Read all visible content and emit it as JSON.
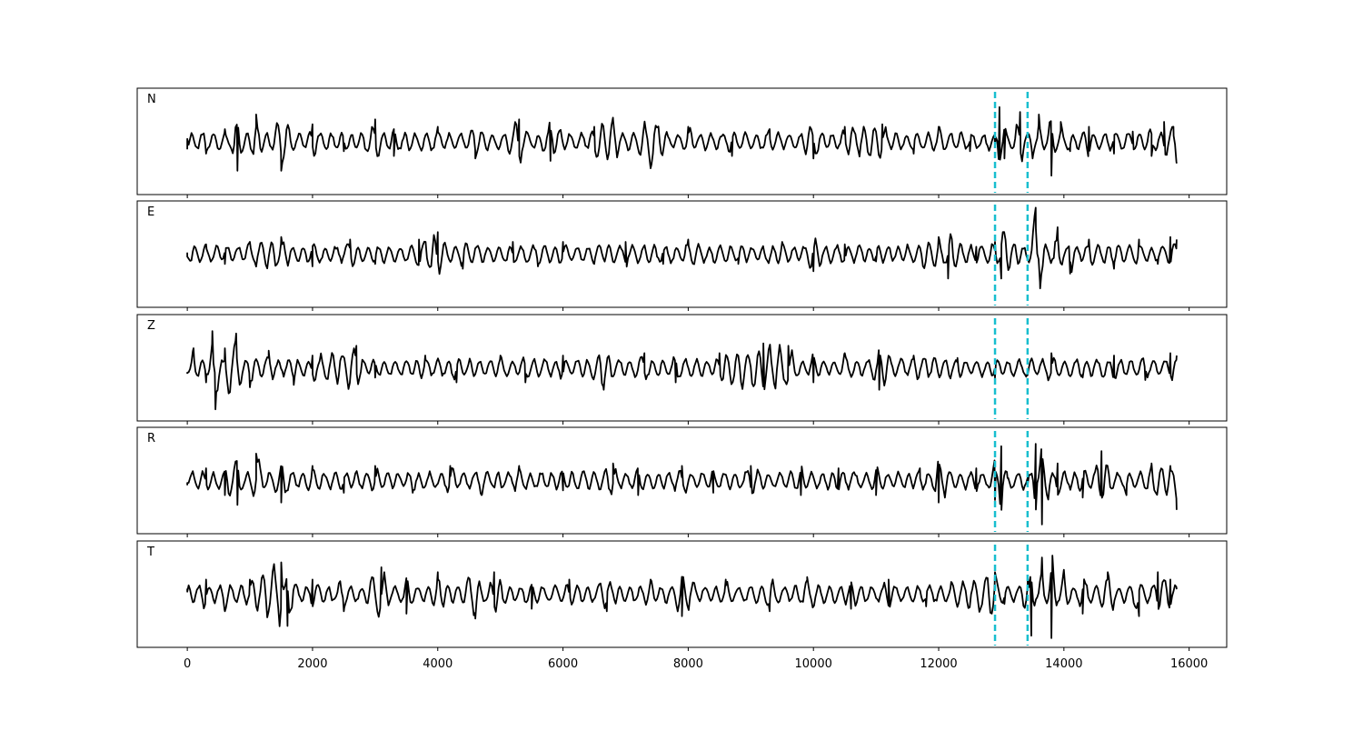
{
  "chart_data": {
    "type": "line",
    "x_range": [
      0,
      15800
    ],
    "xlim": [
      -800,
      16600
    ],
    "x_ticks": [
      {
        "value": 0,
        "label": "0"
      },
      {
        "value": 2000,
        "label": "2000"
      },
      {
        "value": 4000,
        "label": "4000"
      },
      {
        "value": 6000,
        "label": "6000"
      },
      {
        "value": 8000,
        "label": "8000"
      },
      {
        "value": 10000,
        "label": "10000"
      },
      {
        "value": 12000,
        "label": "12000"
      },
      {
        "value": 14000,
        "label": "14000"
      },
      {
        "value": 16000,
        "label": "16000"
      }
    ],
    "markers": [
      12900,
      13420
    ],
    "colors": {
      "trace": "#000000",
      "marker": "#17becf",
      "axes": "#000000"
    },
    "grid": false,
    "y_ticks_shown": false,
    "series": [
      {
        "name": "N",
        "ylim": [
          -1.0,
          1.0
        ],
        "points": [
          [
            0,
            0.05
          ],
          [
            300,
            -0.25
          ],
          [
            600,
            0.25
          ],
          [
            800,
            -0.6
          ],
          [
            1100,
            0.55
          ],
          [
            1500,
            -0.6
          ],
          [
            2000,
            0.35
          ],
          [
            2500,
            -0.2
          ],
          [
            3000,
            0.45
          ],
          [
            3300,
            -0.3
          ],
          [
            4000,
            0.3
          ],
          [
            4600,
            -0.35
          ],
          [
            5300,
            0.45
          ],
          [
            5800,
            -0.4
          ],
          [
            6500,
            0.3
          ],
          [
            6800,
            0.45
          ],
          [
            7400,
            -0.55
          ],
          [
            8000,
            0.3
          ],
          [
            8700,
            -0.3
          ],
          [
            9300,
            0.25
          ],
          [
            10000,
            -0.35
          ],
          [
            10500,
            0.3
          ],
          [
            11100,
            0.35
          ],
          [
            11600,
            -0.25
          ],
          [
            12000,
            0.3
          ],
          [
            12500,
            -0.2
          ],
          [
            12900,
            -0.1
          ],
          [
            12970,
            0.7
          ],
          [
            13050,
            -0.35
          ],
          [
            13300,
            0.6
          ],
          [
            13500,
            -0.35
          ],
          [
            13600,
            0.55
          ],
          [
            13800,
            -0.7
          ],
          [
            13950,
            0.4
          ],
          [
            14100,
            -0.2
          ],
          [
            14400,
            0.3
          ],
          [
            14800,
            -0.25
          ],
          [
            15100,
            0.2
          ],
          [
            15400,
            -0.3
          ],
          [
            15600,
            0.4
          ],
          [
            15750,
            0.3
          ],
          [
            15800,
            -0.45
          ]
        ]
      },
      {
        "name": "E",
        "ylim": [
          -1.0,
          1.0
        ],
        "points": [
          [
            0,
            -0.05
          ],
          [
            300,
            0.2
          ],
          [
            600,
            -0.2
          ],
          [
            1000,
            0.25
          ],
          [
            1500,
            0.35
          ],
          [
            2000,
            -0.25
          ],
          [
            2600,
            0.3
          ],
          [
            3000,
            -0.2
          ],
          [
            3700,
            0.3
          ],
          [
            4000,
            0.45
          ],
          [
            4400,
            -0.3
          ],
          [
            5200,
            0.25
          ],
          [
            5600,
            -0.25
          ],
          [
            6000,
            0.25
          ],
          [
            6500,
            -0.2
          ],
          [
            7000,
            0.25
          ],
          [
            7600,
            -0.2
          ],
          [
            8000,
            0.3
          ],
          [
            8800,
            -0.2
          ],
          [
            9500,
            0.25
          ],
          [
            10000,
            -0.35
          ],
          [
            10500,
            0.2
          ],
          [
            11000,
            -0.15
          ],
          [
            11500,
            0.2
          ],
          [
            12000,
            0.35
          ],
          [
            12150,
            -0.5
          ],
          [
            12600,
            0.15
          ],
          [
            12900,
            0.25
          ],
          [
            13000,
            -0.5
          ],
          [
            13420,
            -0.1
          ],
          [
            13550,
            0.95
          ],
          [
            13620,
            -0.7
          ],
          [
            13900,
            0.55
          ],
          [
            14100,
            -0.4
          ],
          [
            14400,
            0.3
          ],
          [
            14800,
            -0.3
          ],
          [
            15200,
            0.3
          ],
          [
            15500,
            -0.2
          ],
          [
            15700,
            0.35
          ],
          [
            15800,
            0.3
          ]
        ]
      },
      {
        "name": "Z",
        "ylim": [
          -1.0,
          1.0
        ],
        "points": [
          [
            0,
            -0.1
          ],
          [
            100,
            0.4
          ],
          [
            300,
            -0.3
          ],
          [
            400,
            0.75
          ],
          [
            450,
            -0.85
          ],
          [
            600,
            0.4
          ],
          [
            780,
            0.7
          ],
          [
            1000,
            -0.4
          ],
          [
            1300,
            0.35
          ],
          [
            1700,
            -0.35
          ],
          [
            2000,
            0.25
          ],
          [
            2700,
            0.45
          ],
          [
            3000,
            -0.2
          ],
          [
            3800,
            0.25
          ],
          [
            4300,
            -0.3
          ],
          [
            5000,
            0.25
          ],
          [
            5400,
            -0.3
          ],
          [
            6000,
            0.25
          ],
          [
            6650,
            -0.45
          ],
          [
            7300,
            0.3
          ],
          [
            7800,
            -0.3
          ],
          [
            8500,
            0.3
          ],
          [
            9200,
            0.5
          ],
          [
            9600,
            0.45
          ],
          [
            10000,
            -0.3
          ],
          [
            10500,
            0.3
          ],
          [
            11050,
            -0.45
          ],
          [
            11600,
            0.25
          ],
          [
            12300,
            0.2
          ],
          [
            12900,
            -0.2
          ],
          [
            13420,
            -0.15
          ],
          [
            13800,
            0.3
          ],
          [
            14300,
            -0.2
          ],
          [
            14800,
            0.25
          ],
          [
            15300,
            -0.25
          ],
          [
            15700,
            0.3
          ],
          [
            15800,
            0.25
          ]
        ]
      },
      {
        "name": "R",
        "ylim": [
          -1.0,
          1.0
        ],
        "points": [
          [
            0,
            -0.05
          ],
          [
            300,
            0.25
          ],
          [
            600,
            -0.3
          ],
          [
            800,
            -0.5
          ],
          [
            1100,
            0.55
          ],
          [
            1500,
            -0.45
          ],
          [
            2000,
            0.3
          ],
          [
            2500,
            -0.25
          ],
          [
            3000,
            0.3
          ],
          [
            3600,
            -0.25
          ],
          [
            4200,
            0.3
          ],
          [
            4700,
            -0.3
          ],
          [
            5300,
            0.3
          ],
          [
            6000,
            -0.2
          ],
          [
            6800,
            0.35
          ],
          [
            7200,
            -0.3
          ],
          [
            7900,
            0.3
          ],
          [
            8400,
            -0.25
          ],
          [
            9000,
            0.3
          ],
          [
            9800,
            -0.3
          ],
          [
            10400,
            0.25
          ],
          [
            11000,
            -0.3
          ],
          [
            11700,
            0.25
          ],
          [
            12000,
            -0.45
          ],
          [
            12600,
            0.25
          ],
          [
            12900,
            -0.4
          ],
          [
            13000,
            0.7
          ],
          [
            13100,
            0.05
          ],
          [
            13420,
            -0.1
          ],
          [
            13550,
            0.75
          ],
          [
            13650,
            -0.9
          ],
          [
            13900,
            0.35
          ],
          [
            14300,
            -0.35
          ],
          [
            14600,
            0.6
          ],
          [
            15000,
            -0.3
          ],
          [
            15400,
            0.35
          ],
          [
            15700,
            0.3
          ],
          [
            15800,
            -0.6
          ]
        ]
      },
      {
        "name": "T",
        "ylim": [
          -1.0,
          1.0
        ],
        "points": [
          [
            0,
            0.05
          ],
          [
            300,
            0.3
          ],
          [
            600,
            -0.35
          ],
          [
            1000,
            0.3
          ],
          [
            1500,
            0.65
          ],
          [
            1600,
            -0.65
          ],
          [
            2000,
            0.3
          ],
          [
            2500,
            -0.35
          ],
          [
            3100,
            0.55
          ],
          [
            3500,
            -0.4
          ],
          [
            4000,
            0.45
          ],
          [
            4600,
            -0.5
          ],
          [
            4900,
            0.45
          ],
          [
            5500,
            -0.3
          ],
          [
            6100,
            0.3
          ],
          [
            6700,
            -0.35
          ],
          [
            7400,
            0.3
          ],
          [
            7900,
            -0.45
          ],
          [
            8600,
            0.3
          ],
          [
            9300,
            -0.35
          ],
          [
            9900,
            0.35
          ],
          [
            10600,
            -0.3
          ],
          [
            11200,
            0.3
          ],
          [
            11800,
            -0.25
          ],
          [
            12200,
            0.25
          ],
          [
            12900,
            0.45
          ],
          [
            13050,
            -0.2
          ],
          [
            13420,
            0.35
          ],
          [
            13480,
            -0.85
          ],
          [
            13650,
            0.75
          ],
          [
            13800,
            -0.9
          ],
          [
            14000,
            0.5
          ],
          [
            14300,
            -0.4
          ],
          [
            14700,
            0.45
          ],
          [
            15200,
            -0.45
          ],
          [
            15500,
            0.45
          ],
          [
            15700,
            0.3
          ],
          [
            15800,
            0.1
          ]
        ]
      }
    ]
  }
}
